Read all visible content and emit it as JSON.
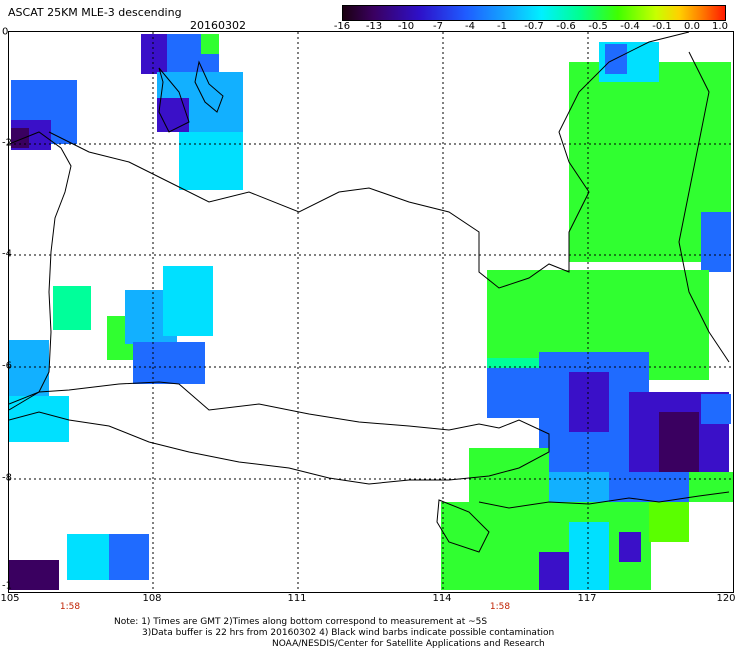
{
  "header": {
    "title": "ASCAT 25KM MLE-3 descending",
    "date": "20160302"
  },
  "colorbar": {
    "ticks": [
      "-16",
      "-13",
      "-10",
      "-7",
      "-4",
      "-1",
      "-0.7",
      "-0.6",
      "-0.5",
      "-0.4",
      "-0.1",
      "0.0",
      "1.0"
    ]
  },
  "axes": {
    "y_labels": [
      "0",
      "-2",
      "-4",
      "-6",
      "-8",
      "-1"
    ],
    "x_labels": [
      "105",
      "108",
      "111",
      "114",
      "117",
      "120"
    ],
    "time_labels": [
      "1:58",
      "1:58"
    ]
  },
  "notes": [
    "Note: 1) Times are GMT 2)Times along bottom correspond to measurement at ~5S",
    "3)Data buffer is 22 hrs from 20160302 4) Black wind barbs indicate possible contamination",
    "NOAA/NESDIS/Center for Satellite Applications and Research"
  ],
  "colors": {
    "dark_purple": "#3a0060",
    "purple": "#3a10c8",
    "blue": "#1f6bff",
    "sky": "#12b0ff",
    "cyan": "#00e0ff",
    "aqua_green": "#00ff9a",
    "green": "#30ff30",
    "light_green": "#5aff00"
  }
}
